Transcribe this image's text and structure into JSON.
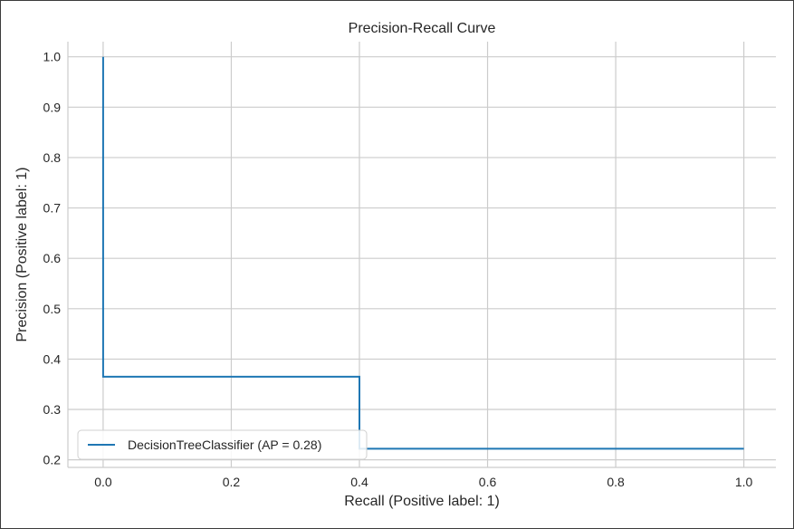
{
  "chart_data": {
    "type": "line",
    "title": "Precision-Recall Curve",
    "xlabel": "Recall (Positive label: 1)",
    "ylabel": "Precision (Positive label: 1)",
    "xlim": [
      -0.055,
      1.05
    ],
    "ylim": [
      0.185,
      1.03
    ],
    "xticks": [
      0.0,
      0.2,
      0.4,
      0.6,
      0.8,
      1.0
    ],
    "yticks": [
      0.2,
      0.3,
      0.4,
      0.5,
      0.6,
      0.7,
      0.8,
      0.9,
      1.0
    ],
    "xtick_labels": [
      "0.0",
      "0.2",
      "0.4",
      "0.6",
      "0.8",
      "1.0"
    ],
    "ytick_labels": [
      "0.2",
      "0.3",
      "0.4",
      "0.5",
      "0.6",
      "0.7",
      "0.8",
      "0.9",
      "1.0"
    ],
    "grid": true,
    "legend_position": "lower-left",
    "series": [
      {
        "name": "DecisionTreeClassifier (AP = 0.28)",
        "color": "#1f77b4",
        "step": true,
        "x": [
          0.0,
          0.0,
          0.4,
          0.4,
          1.0
        ],
        "y": [
          1.0,
          0.365,
          0.365,
          0.222,
          0.222
        ]
      }
    ]
  }
}
